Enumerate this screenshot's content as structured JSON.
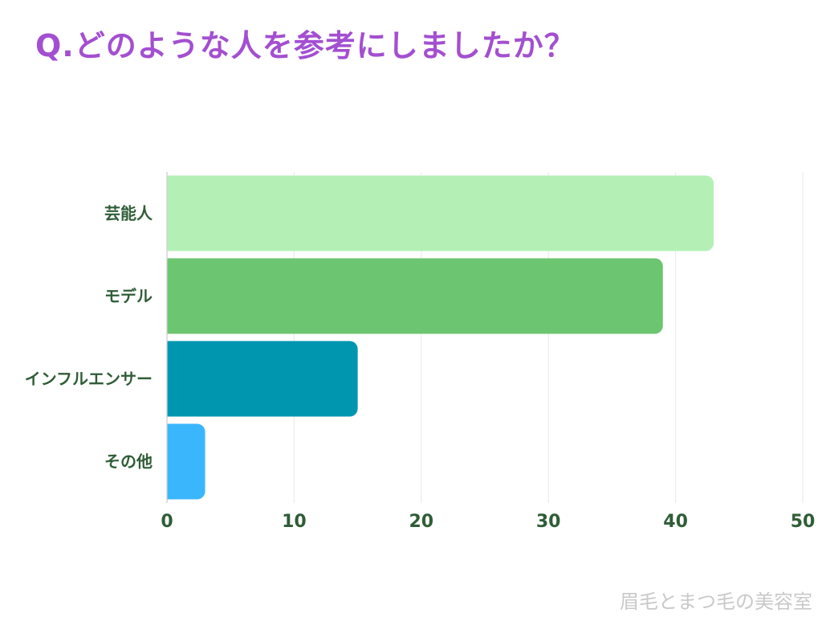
{
  "title": "Q.どのような人を参考にしましたか？",
  "watermark": "眉毛とまつ毛の美容室",
  "chart_data": {
    "type": "bar",
    "orientation": "horizontal",
    "categories": [
      "芸能人",
      "モデル",
      "インフルエンサー",
      "その他"
    ],
    "values": [
      43,
      39,
      15,
      3
    ],
    "colors": [
      "#b4f0b6",
      "#6cc570",
      "#0096b0",
      "#3ab6fc"
    ],
    "xlim": [
      0,
      50
    ],
    "xticks": [
      "0",
      "10",
      "20",
      "30",
      "40",
      "50"
    ],
    "grid": true,
    "xlabel": "",
    "ylabel": ""
  }
}
